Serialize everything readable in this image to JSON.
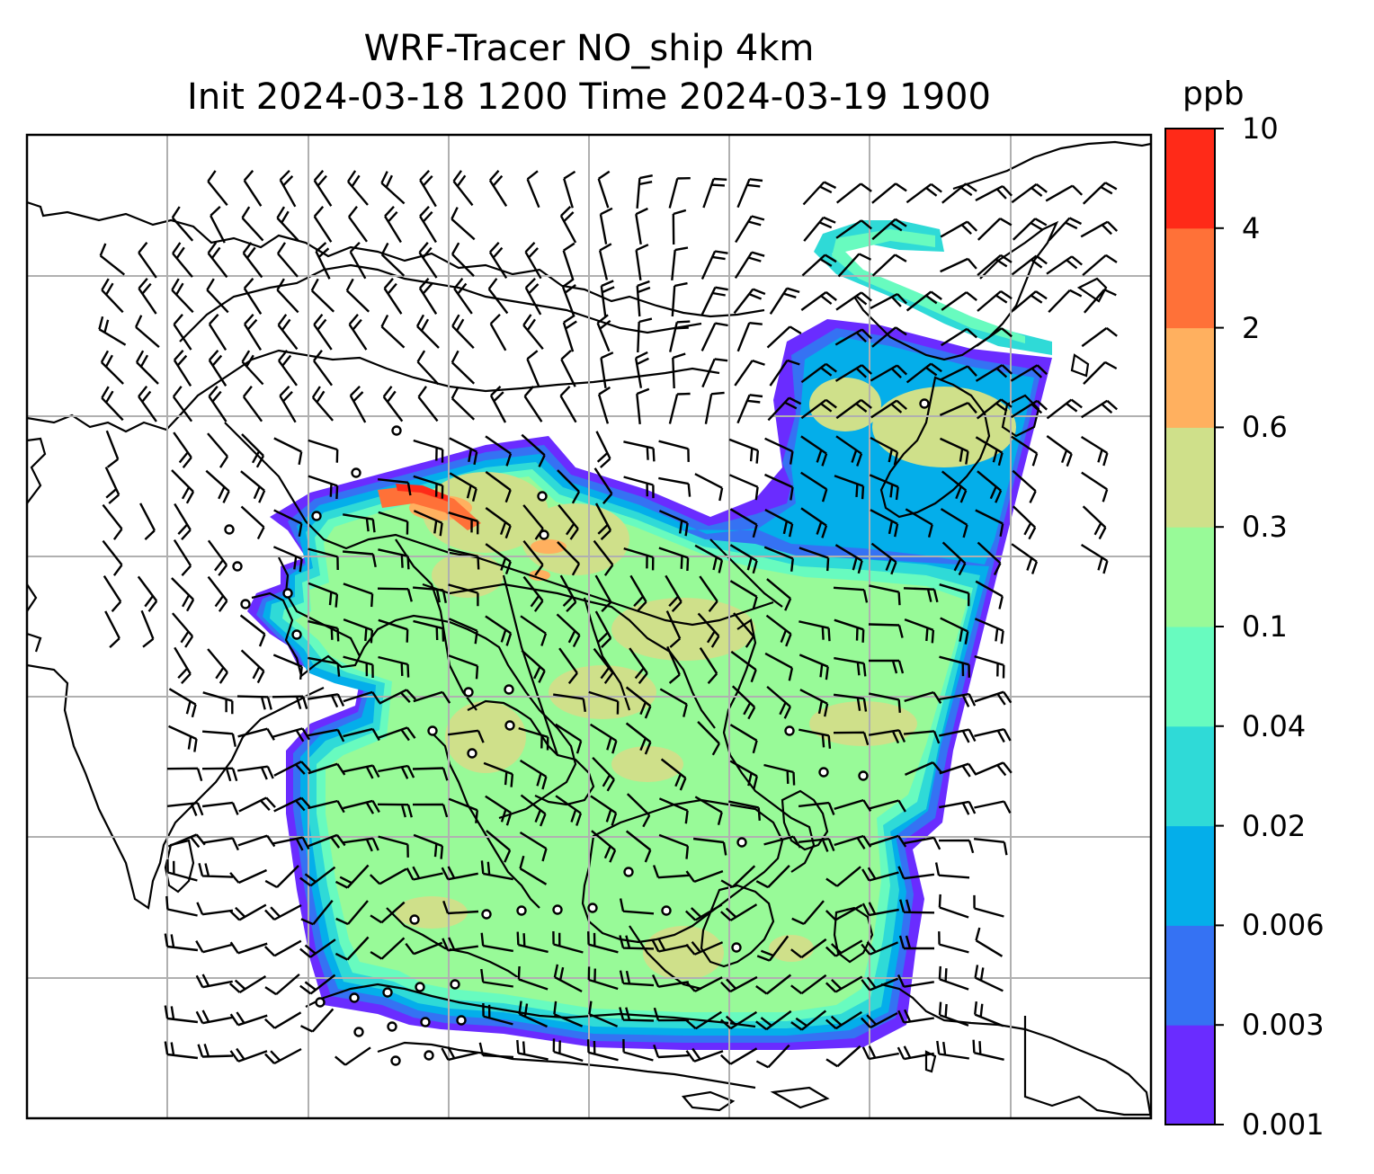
{
  "title": {
    "line1": "WRF-Tracer NO_ship 4km",
    "line2": "Init 2024-03-18 1200 Time 2024-03-19 1900"
  },
  "colorbar": {
    "unit": "ppb",
    "levels": [
      "0.001",
      "0.003",
      "0.006",
      "0.02",
      "0.04",
      "0.1",
      "0.3",
      "0.6",
      "2",
      "4",
      "10"
    ],
    "colors": [
      "#6a2cff",
      "#3572f3",
      "#04aeea",
      "#2fdad7",
      "#68fbbf",
      "#98fa98",
      "#cfe08a",
      "#ffb05f",
      "#ff7138",
      "#ff2a18"
    ]
  },
  "map": {
    "field": "NO_ship",
    "gridlines": true,
    "wind_barbs": true,
    "coastline_color": "#000000"
  }
}
